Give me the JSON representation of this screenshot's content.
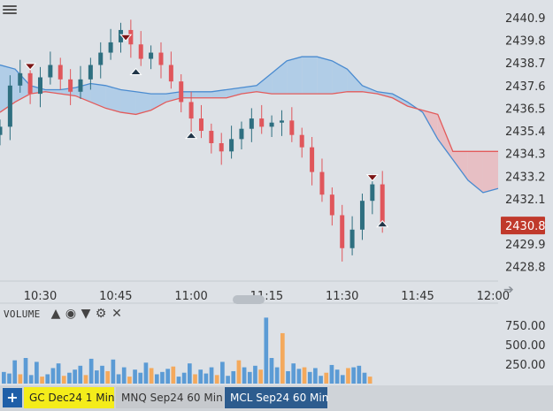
{
  "tabs": [
    {
      "label": "GC Dec24 1 Min",
      "color": "#f4ec1a"
    },
    {
      "label": "MNQ Sep24 60 Min",
      "color": "#c6c9cd"
    },
    {
      "label": "MCL Sep24 60 Min",
      "color": "#2d5c8e"
    }
  ],
  "volume_panel": {
    "title": "VOLUME",
    "tools": [
      "chevron-up-icon",
      "eye-icon",
      "chevron-down-icon",
      "gear-icon",
      "close-icon"
    ]
  },
  "colors": {
    "up": "#2e6f80",
    "down": "#e0565b",
    "cloud_bull": "#a9c9e6",
    "cloud_bear": "#e9b9bd",
    "price_badge": "#c0392b",
    "vol_blue": "#5b9bd5",
    "vol_orange": "#f4a95c"
  },
  "chart_data": [
    {
      "type": "candlestick",
      "title": "",
      "xlabel": "",
      "ylabel": "",
      "x_ticks": [
        "10:30",
        "10:45",
        "11:00",
        "11:15",
        "11:30",
        "11:45",
        "12:00"
      ],
      "x_range": [
        "10:22",
        "12:01"
      ],
      "y_ticks": [
        2428.8,
        2429.9,
        2431.0,
        2432.1,
        2433.2,
        2434.3,
        2435.4,
        2436.5,
        2437.6,
        2438.7,
        2439.8,
        2440.9
      ],
      "y_tick_labels": [
        "2428.8",
        "2429.9",
        "",
        "2432.1",
        "2433.2",
        "2434.3",
        "2435.4",
        "2436.5",
        "2437.6",
        "2438.7",
        "2439.8",
        "2440.9"
      ],
      "ylim": [
        2428.1,
        2441.5
      ],
      "last_price": "2430.8",
      "candles_approx": {
        "times": [
          "10:22",
          "10:24",
          "10:26",
          "10:28",
          "10:30",
          "10:32",
          "10:34",
          "10:36",
          "10:38",
          "10:40",
          "10:42",
          "10:44",
          "10:46",
          "10:48",
          "10:50",
          "10:52",
          "10:54",
          "10:56",
          "10:58",
          "11:00",
          "11:02",
          "11:04",
          "11:06",
          "11:08",
          "11:10",
          "11:12",
          "11:14",
          "11:16",
          "11:18",
          "11:20",
          "11:22",
          "11:24",
          "11:26",
          "11:28",
          "11:30",
          "11:32",
          "11:34",
          "11:36",
          "11:38"
        ],
        "close": [
          2435.6,
          2437.6,
          2438.2,
          2437.2,
          2438.0,
          2438.6,
          2437.9,
          2437.3,
          2437.9,
          2438.6,
          2439.2,
          2439.7,
          2440.3,
          2439.6,
          2438.9,
          2439.2,
          2438.6,
          2437.8,
          2436.8,
          2436.0,
          2435.4,
          2434.8,
          2434.4,
          2435.0,
          2435.5,
          2436.0,
          2435.6,
          2435.8,
          2435.9,
          2435.2,
          2434.6,
          2433.4,
          2432.3,
          2431.3,
          2429.7,
          2430.6,
          2432.0,
          2432.8,
          2430.8
        ]
      },
      "cloud": {
        "times": [
          "10:22",
          "10:25",
          "10:28",
          "10:31",
          "10:34",
          "10:37",
          "10:40",
          "10:43",
          "10:46",
          "10:49",
          "10:52",
          "10:55",
          "10:58",
          "11:01",
          "11:04",
          "11:07",
          "11:10",
          "11:13",
          "11:16",
          "11:19",
          "11:22",
          "11:25",
          "11:28",
          "11:31",
          "11:34",
          "11:37",
          "11:40",
          "11:43",
          "11:46",
          "11:49",
          "11:52",
          "11:55",
          "11:58",
          "12:01"
        ],
        "span_a": [
          2438.6,
          2438.4,
          2437.6,
          2437.4,
          2437.4,
          2437.5,
          2437.7,
          2437.6,
          2437.4,
          2437.3,
          2437.2,
          2437.2,
          2437.3,
          2437.3,
          2437.3,
          2437.4,
          2437.5,
          2437.6,
          2438.2,
          2438.8,
          2439.0,
          2439.0,
          2438.8,
          2438.4,
          2437.6,
          2437.3,
          2437.2,
          2436.8,
          2436.3,
          2435.0,
          2434.0,
          2433.0,
          2432.4,
          2432.6
        ],
        "span_b": [
          2436.3,
          2436.8,
          2437.2,
          2437.3,
          2437.2,
          2437.1,
          2436.8,
          2436.5,
          2436.3,
          2436.2,
          2436.4,
          2436.8,
          2437.0,
          2437.0,
          2437.0,
          2437.0,
          2437.2,
          2437.3,
          2437.2,
          2437.2,
          2437.2,
          2437.2,
          2437.2,
          2437.3,
          2437.3,
          2437.2,
          2437.0,
          2436.6,
          2436.4,
          2436.2,
          2434.4,
          2434.4,
          2434.4,
          2434.4
        ]
      },
      "markers": [
        {
          "time": "10:28",
          "price": 2438.5,
          "kind": "down-arrow"
        },
        {
          "time": "10:47",
          "price": 2439.9,
          "kind": "down-arrow"
        },
        {
          "time": "10:49",
          "price": 2438.3,
          "kind": "up-arrow"
        },
        {
          "time": "11:00",
          "price": 2435.2,
          "kind": "up-arrow"
        },
        {
          "time": "11:36",
          "price": 2433.1,
          "kind": "down-arrow"
        },
        {
          "time": "11:38",
          "price": 2430.9,
          "kind": "up-arrow"
        }
      ]
    },
    {
      "type": "bar",
      "title": "VOLUME",
      "y_ticks": [
        250,
        500,
        750
      ],
      "y_tick_labels": [
        "250.00",
        "500.00",
        "750.00"
      ],
      "ylim": [
        0,
        820
      ],
      "values_approx": [
        150,
        130,
        300,
        120,
        330,
        110,
        280,
        90,
        120,
        200,
        260,
        100,
        140,
        180,
        230,
        110,
        320,
        170,
        230,
        160,
        310,
        120,
        210,
        90,
        180,
        140,
        270,
        200,
        120,
        150,
        190,
        220,
        90,
        140,
        260,
        120,
        180,
        130,
        210,
        110,
        280,
        100,
        160,
        300,
        210,
        150,
        230,
        180,
        850,
        330,
        210,
        650,
        160,
        260,
        190,
        210,
        150,
        200,
        100,
        140,
        240,
        180,
        110,
        200,
        210,
        230,
        140,
        90
      ],
      "colors_pattern": [
        "blue",
        "blue",
        "blue",
        "orange"
      ]
    }
  ]
}
